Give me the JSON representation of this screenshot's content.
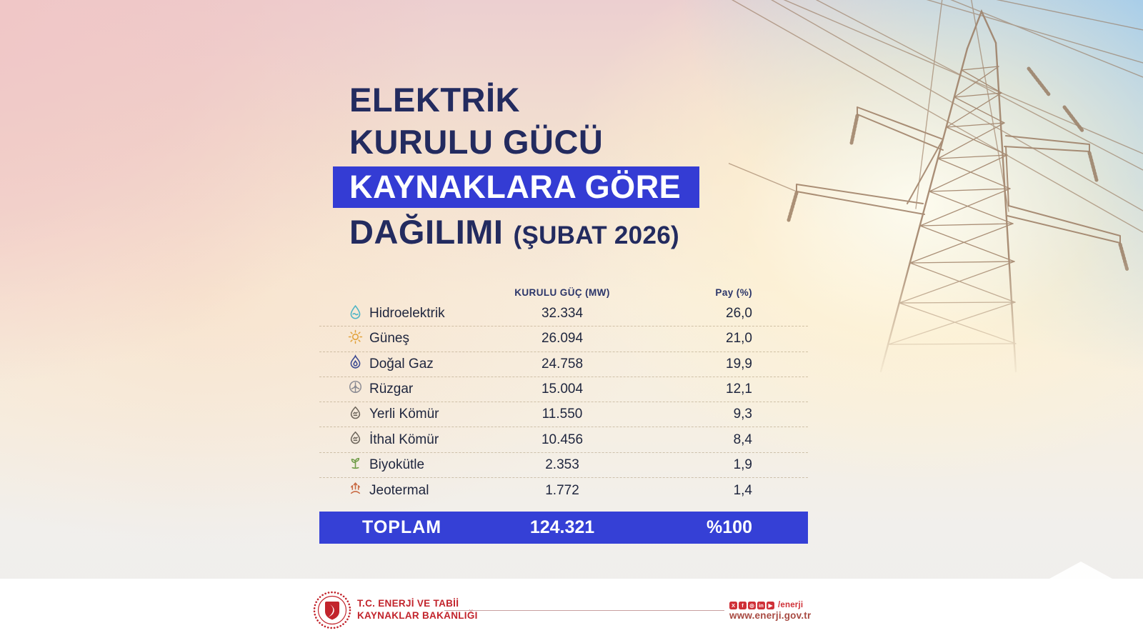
{
  "title": {
    "line1": "ELEKTRİK",
    "line2": "KURULU GÜCÜ",
    "line3": "KAYNAKLARA GÖRE",
    "line4": "DAĞILIMI",
    "line4_suffix": "(ŞUBAT 2026)"
  },
  "colors": {
    "accent_blue": "#3540d6",
    "navy": "#232b5f",
    "ministry_red": "#c2242c"
  },
  "table": {
    "headers": {
      "capacity": "KURULU GÜÇ (MW)",
      "share": "Pay (%)"
    },
    "rows": [
      {
        "icon": "water-drop-icon",
        "label": "Hidroelektrik",
        "capacity": "32.334",
        "share": "26,0"
      },
      {
        "icon": "sun-icon",
        "label": "Güneş",
        "capacity": "26.094",
        "share": "21,0"
      },
      {
        "icon": "gas-flame-icon",
        "label": "Doğal Gaz",
        "capacity": "24.758",
        "share": "19,9"
      },
      {
        "icon": "wind-turbine-icon",
        "label": "Rüzgar",
        "capacity": "15.004",
        "share": "12,1"
      },
      {
        "icon": "coal-icon",
        "label": "Yerli Kömür",
        "capacity": "11.550",
        "share": "9,3"
      },
      {
        "icon": "coal-icon",
        "label": "İthal Kömür",
        "capacity": "10.456",
        "share": "8,4"
      },
      {
        "icon": "biomass-icon",
        "label": "Biyokütle",
        "capacity": "2.353",
        "share": "1,9"
      },
      {
        "icon": "geothermal-icon",
        "label": "Jeotermal",
        "capacity": "1.772",
        "share": "1,4"
      }
    ],
    "total": {
      "label": "TOPLAM",
      "capacity": "124.321",
      "share": "%100"
    }
  },
  "chart_data": {
    "type": "table",
    "title": "ELEKTRİK KURULU GÜCÜ KAYNAKLARA GÖRE DAĞILIMI (ŞUBAT 2026)",
    "columns": [
      "Kaynak",
      "KURULU GÜÇ (MW)",
      "Pay (%)"
    ],
    "rows": [
      [
        "Hidroelektrik",
        32334,
        26.0
      ],
      [
        "Güneş",
        26094,
        21.0
      ],
      [
        "Doğal Gaz",
        24758,
        19.9
      ],
      [
        "Rüzgar",
        15004,
        12.1
      ],
      [
        "Yerli Kömür",
        11550,
        9.3
      ],
      [
        "İthal Kömür",
        10456,
        8.4
      ],
      [
        "Biyokütle",
        2353,
        1.9
      ],
      [
        "Jeotermal",
        1772,
        1.4
      ]
    ],
    "total": [
      "TOPLAM",
      124321,
      100
    ]
  },
  "footer": {
    "ministry_line1": "T.C. ENERJİ VE TABİİ",
    "ministry_line2": "KAYNAKLAR BAKANLIĞI",
    "social_icons": [
      "twitter-x-icon",
      "facebook-icon",
      "instagram-icon",
      "linkedin-icon",
      "youtube-icon"
    ],
    "social_handle": "/enerji",
    "website": "www.enerji.gov.tr"
  }
}
